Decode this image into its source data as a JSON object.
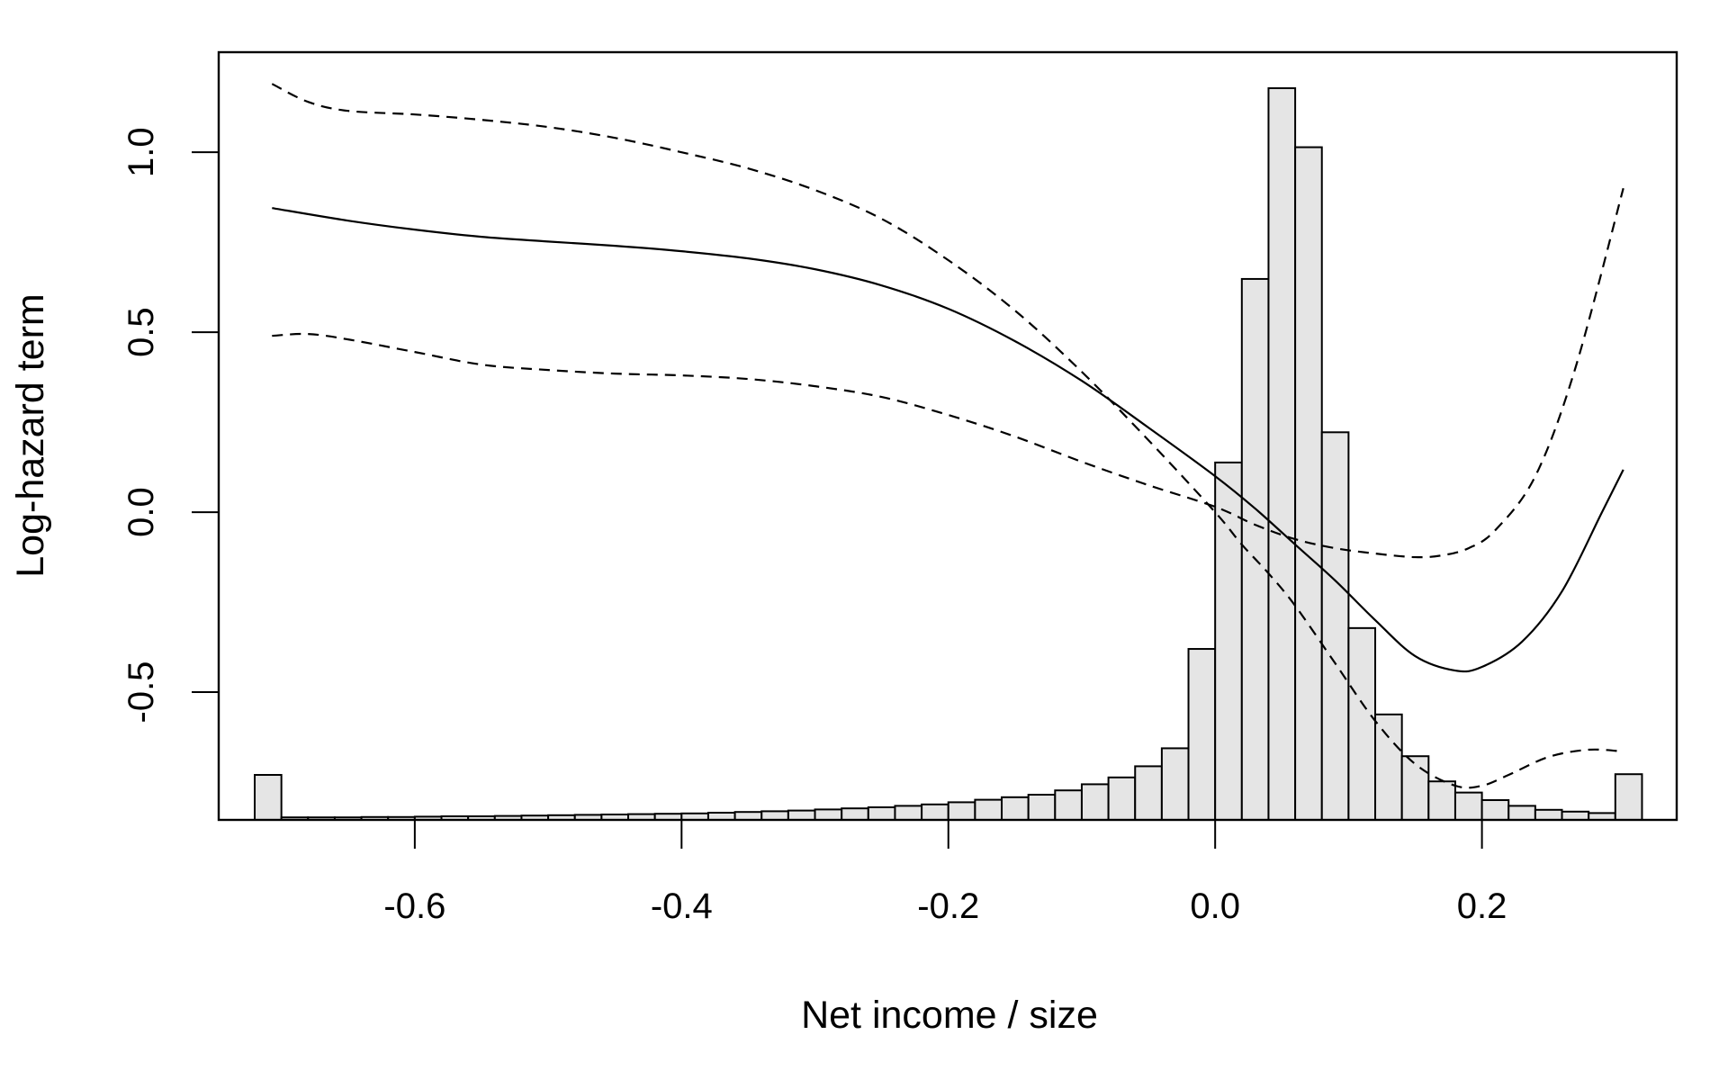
{
  "chart_data": {
    "type": "line",
    "xlabel": "Net income / size",
    "ylabel": "Log-hazard term",
    "xlim": [
      -0.747,
      0.346
    ],
    "ylim": [
      -0.855,
      1.278
    ],
    "x_ticks": [
      -0.6,
      -0.4,
      -0.2,
      0.0,
      0.2
    ],
    "x_tick_labels": [
      "-0.6",
      "-0.4",
      "-0.2",
      "0.0",
      "0.2"
    ],
    "y_ticks": [
      -0.5,
      0.0,
      0.5,
      1.0
    ],
    "y_tick_labels": [
      "-0.5",
      "0.0",
      "0.5",
      "1.0"
    ],
    "grid": false,
    "legend": "none",
    "histogram": {
      "bin_width": 0.02,
      "bin_starts": [
        -0.72,
        -0.7,
        -0.68,
        -0.66,
        -0.64,
        -0.62,
        -0.6,
        -0.58,
        -0.56,
        -0.54,
        -0.52,
        -0.5,
        -0.48,
        -0.46,
        -0.44,
        -0.42,
        -0.4,
        -0.38,
        -0.36,
        -0.34,
        -0.32,
        -0.3,
        -0.28,
        -0.26,
        -0.24,
        -0.22,
        -0.2,
        -0.18,
        -0.16,
        -0.14,
        -0.12,
        -0.1,
        -0.08,
        -0.06,
        -0.04,
        -0.02,
        0.0,
        0.02,
        0.04,
        0.06,
        0.08,
        0.1,
        0.12,
        0.14,
        0.16,
        0.18,
        0.2,
        0.22,
        0.24,
        0.26,
        0.28,
        0.3
      ],
      "bar_tops": [
        -0.73,
        -0.848,
        -0.848,
        -0.848,
        -0.847,
        -0.847,
        -0.846,
        -0.845,
        -0.845,
        -0.844,
        -0.843,
        -0.842,
        -0.841,
        -0.84,
        -0.839,
        -0.838,
        -0.837,
        -0.835,
        -0.833,
        -0.831,
        -0.829,
        -0.826,
        -0.823,
        -0.82,
        -0.816,
        -0.812,
        -0.806,
        -0.799,
        -0.792,
        -0.785,
        -0.773,
        -0.756,
        -0.737,
        -0.706,
        -0.656,
        -0.38,
        0.138,
        0.648,
        1.178,
        1.014,
        0.222,
        -0.322,
        -0.562,
        -0.678,
        -0.748,
        -0.779,
        -0.8,
        -0.816,
        -0.827,
        -0.832,
        -0.836,
        -0.728
      ]
    },
    "series": [
      {
        "style": "solid",
        "x": [
          -0.707,
          -0.65,
          -0.6,
          -0.55,
          -0.5,
          -0.45,
          -0.4,
          -0.35,
          -0.3,
          -0.25,
          -0.2,
          -0.15,
          -0.1,
          -0.05,
          0.0,
          0.03,
          0.06,
          0.09,
          0.12,
          0.15,
          0.18,
          0.2,
          0.23,
          0.26,
          0.29,
          0.306
        ],
        "y": [
          0.845,
          0.81,
          0.785,
          0.765,
          0.752,
          0.74,
          0.725,
          0.705,
          0.675,
          0.63,
          0.565,
          0.475,
          0.365,
          0.235,
          0.1,
          0.01,
          -0.09,
          -0.19,
          -0.3,
          -0.4,
          -0.44,
          -0.43,
          -0.36,
          -0.22,
          0.0,
          0.118
        ]
      },
      {
        "style": "dashed",
        "x": [
          -0.707,
          -0.68,
          -0.65,
          -0.6,
          -0.55,
          -0.5,
          -0.45,
          -0.4,
          -0.35,
          -0.3,
          -0.25,
          -0.2,
          -0.15,
          -0.1,
          -0.05,
          0.0,
          0.02,
          0.04,
          0.06,
          0.09,
          0.12,
          0.15,
          0.18,
          0.2,
          0.22,
          0.25,
          0.28,
          0.306
        ],
        "y": [
          1.19,
          1.14,
          1.115,
          1.105,
          1.09,
          1.07,
          1.04,
          1.0,
          0.955,
          0.895,
          0.815,
          0.7,
          0.56,
          0.39,
          0.2,
          0.0,
          -0.09,
          -0.17,
          -0.26,
          -0.42,
          -0.58,
          -0.7,
          -0.76,
          -0.76,
          -0.73,
          -0.68,
          -0.66,
          -0.665
        ]
      },
      {
        "style": "dashed",
        "x": [
          -0.707,
          -0.68,
          -0.65,
          -0.6,
          -0.55,
          -0.5,
          -0.45,
          -0.4,
          -0.35,
          -0.3,
          -0.25,
          -0.2,
          -0.15,
          -0.1,
          -0.05,
          0.0,
          0.03,
          0.06,
          0.09,
          0.12,
          0.15,
          0.17,
          0.19,
          0.21,
          0.24,
          0.27,
          0.306
        ],
        "y": [
          0.49,
          0.495,
          0.48,
          0.445,
          0.41,
          0.395,
          0.385,
          0.38,
          0.37,
          0.35,
          0.32,
          0.27,
          0.21,
          0.14,
          0.075,
          0.015,
          -0.035,
          -0.075,
          -0.1,
          -0.115,
          -0.125,
          -0.12,
          -0.1,
          -0.05,
          0.1,
          0.4,
          0.9
        ]
      }
    ]
  }
}
